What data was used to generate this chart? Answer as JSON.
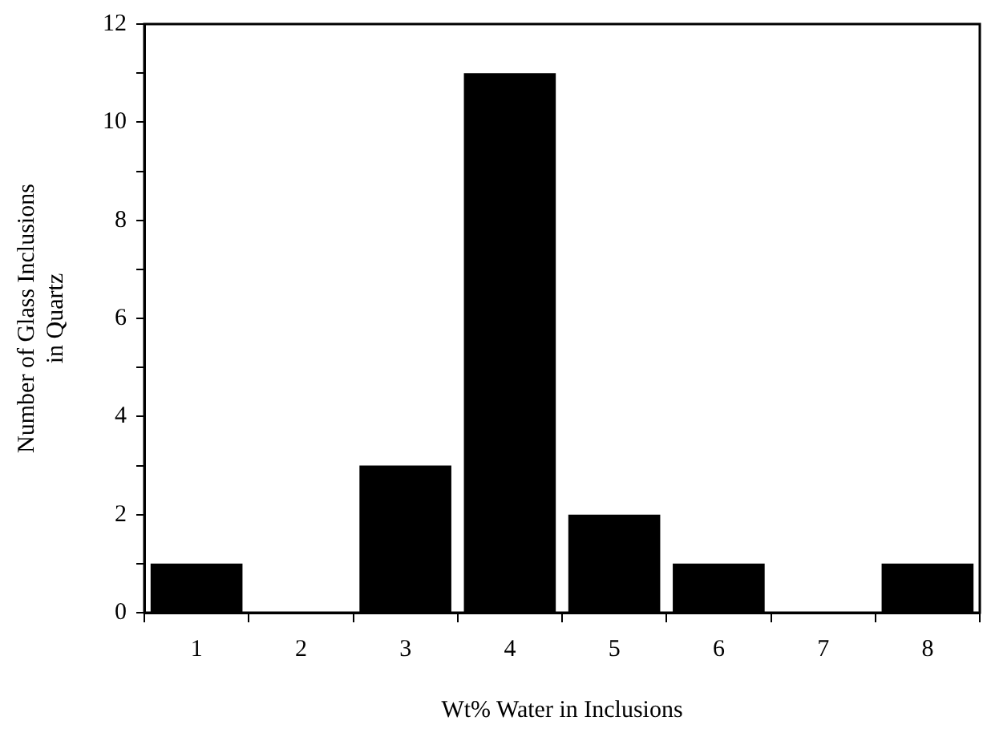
{
  "chart_data": {
    "type": "bar",
    "xlabel": "Wt% Water in Inclusions",
    "ylabel": "Number of Glass Inclusions\nin Quartz",
    "categories": [
      "1",
      "2",
      "3",
      "4",
      "5",
      "6",
      "7",
      "8"
    ],
    "values": [
      1,
      0,
      3,
      11,
      2,
      1,
      0,
      1
    ],
    "color": "#000000",
    "ylim": [
      0,
      12
    ],
    "yticks": [
      0,
      {
        "value": 1,
        "label": null
      },
      2,
      {
        "value": 3,
        "label": null
      },
      4,
      {
        "value": 5,
        "label": null
      },
      6,
      {
        "value": 7,
        "label": null
      },
      8,
      {
        "value": 9,
        "label": null
      },
      10,
      {
        "value": 11,
        "label": null
      },
      12
    ],
    "grid": false,
    "legend": false
  }
}
